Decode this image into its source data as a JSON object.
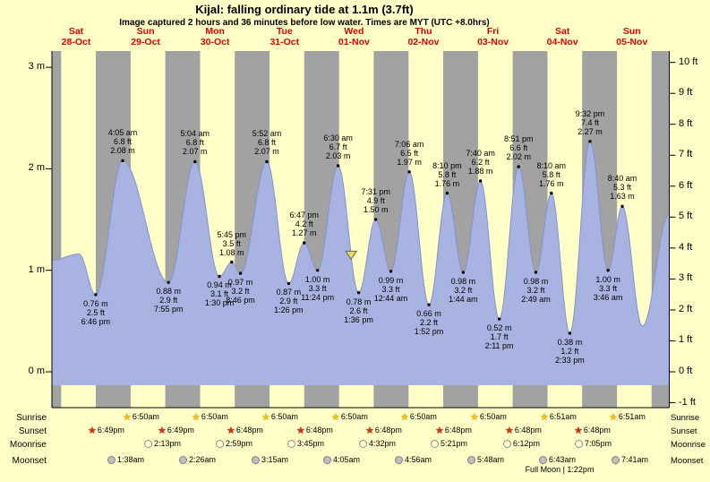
{
  "header": {
    "title": "Kijal: falling  ordinary tide at 1.1m (3.7ft)",
    "subtitle": "Image captured 2 hours and 36 minutes before low water. Times are MYT (UTC +8.0hrs)"
  },
  "colors": {
    "page_bg": "#ffffc8",
    "night_band": "#a2a2a2",
    "tide_fill": "#a9b3e1",
    "tide_edge": "#8093cf",
    "date_red": "#dd0000",
    "marker_fill": "#e6de52",
    "marker_edge": "#606060",
    "axis": "#000000"
  },
  "chart_data": {
    "type": "area",
    "title": "Kijal tide heights",
    "ylabel_left": "m",
    "ylabel_right": "ft",
    "ylim_m": [
      -0.3,
      3.2
    ],
    "days": [
      {
        "dow": "Sat",
        "date": "28-Oct"
      },
      {
        "dow": "Sun",
        "date": "29-Oct"
      },
      {
        "dow": "Mon",
        "date": "30-Oct"
      },
      {
        "dow": "Tue",
        "date": "31-Oct"
      },
      {
        "dow": "Wed",
        "date": "01-Nov"
      },
      {
        "dow": "Thu",
        "date": "02-Nov"
      },
      {
        "dow": "Fri",
        "date": "03-Nov"
      },
      {
        "dow": "Sat",
        "date": "04-Nov"
      },
      {
        "dow": "Sun",
        "date": "05-Nov"
      }
    ],
    "y_left_ticks": [
      {
        "v": 3,
        "label": "3 m"
      },
      {
        "v": 2,
        "label": "2 m"
      },
      {
        "v": 1,
        "label": "1 m"
      },
      {
        "v": 0,
        "label": "0 m"
      }
    ],
    "y_right_ticks": [
      {
        "v": 10,
        "label": "10 ft"
      },
      {
        "v": 9,
        "label": "9 ft"
      },
      {
        "v": 8,
        "label": "8 ft"
      },
      {
        "v": 7,
        "label": "7 ft"
      },
      {
        "v": 6,
        "label": "6 ft"
      },
      {
        "v": 5,
        "label": "5 ft"
      },
      {
        "v": 4,
        "label": "4 ft"
      },
      {
        "v": 3,
        "label": "3 ft"
      },
      {
        "v": 2,
        "label": "2 ft"
      },
      {
        "v": 1,
        "label": "1 ft"
      },
      {
        "v": 0,
        "label": "0 ft"
      },
      {
        "v": -1,
        "label": "-1 ft"
      }
    ],
    "tides": [
      {
        "kind": "low",
        "time": "6:46 pm",
        "ft": "2.5 ft",
        "m": "0.76 m",
        "t": 18.77,
        "h": 0.76
      },
      {
        "kind": "high",
        "time": "4:05 am",
        "ft": "6.8 ft",
        "m": "2.08 m",
        "t": 28.08,
        "h": 2.08
      },
      {
        "kind": "low",
        "time": "7:55 pm",
        "ft": "2.9 ft",
        "m": "0.88 m",
        "t": 43.92,
        "h": 0.88
      },
      {
        "kind": "high",
        "time": "5:04 am",
        "ft": "6.8 ft",
        "m": "2.07 m",
        "t": 53.07,
        "h": 2.07
      },
      {
        "kind": "low",
        "time": "1:30 pm",
        "ft": "3.1 ft",
        "m": "0.94 m",
        "t": 61.5,
        "h": 0.94
      },
      {
        "kind": "high",
        "time": "5:45 pm",
        "ft": "3.5 ft",
        "m": "1.08 m",
        "t": 65.75,
        "h": 1.08
      },
      {
        "kind": "low",
        "time": "8:46 pm",
        "ft": "3.2 ft",
        "m": "0.97 m",
        "t": 68.77,
        "h": 0.97
      },
      {
        "kind": "high",
        "time": "5:52 am",
        "ft": "6.8 ft",
        "m": "2.07 m",
        "t": 77.87,
        "h": 2.07
      },
      {
        "kind": "low",
        "time": "1:26 pm",
        "ft": "2.9 ft",
        "m": "0.87 m",
        "t": 85.43,
        "h": 0.87
      },
      {
        "kind": "high",
        "time": "6:47 pm",
        "ft": "4.2 ft",
        "m": "1.27 m",
        "t": 90.78,
        "h": 1.27
      },
      {
        "kind": "low",
        "time": "11:24 pm",
        "ft": "3.3 ft",
        "m": "1.00 m",
        "t": 95.4,
        "h": 1.0
      },
      {
        "kind": "high",
        "time": "6:30 am",
        "ft": "6.7 ft",
        "m": "2.03 m",
        "t": 102.5,
        "h": 2.03
      },
      {
        "kind": "low",
        "time": "1:36 pm",
        "ft": "2.6 ft",
        "m": "0.78 m",
        "t": 109.6,
        "h": 0.78
      },
      {
        "kind": "high",
        "time": "7:31 pm",
        "ft": "4.9 ft",
        "m": "1.50 m",
        "t": 115.52,
        "h": 1.5
      },
      {
        "kind": "low",
        "time": "12:44 am",
        "ft": "3.3 ft",
        "m": "0.99 m",
        "t": 120.73,
        "h": 0.99
      },
      {
        "kind": "high",
        "time": "7:06 am",
        "ft": "6.5 ft",
        "m": "1.97 m",
        "t": 127.1,
        "h": 1.97
      },
      {
        "kind": "low",
        "time": "1:52 pm",
        "ft": "2.2 ft",
        "m": "0.66 m",
        "t": 133.87,
        "h": 0.66
      },
      {
        "kind": "high",
        "time": "8:10 pm",
        "ft": "5.8 ft",
        "m": "1.76 m",
        "t": 140.17,
        "h": 1.76
      },
      {
        "kind": "low",
        "time": "1:44 am",
        "ft": "3.2 ft",
        "m": "0.98 m",
        "t": 145.73,
        "h": 0.98
      },
      {
        "kind": "high",
        "time": "7:40 am",
        "ft": "6.2 ft",
        "m": "1.88 m",
        "t": 151.67,
        "h": 1.88
      },
      {
        "kind": "low",
        "time": "2:11 pm",
        "ft": "1.7 ft",
        "m": "0.52 m",
        "t": 158.18,
        "h": 0.52
      },
      {
        "kind": "high",
        "time": "8:51 pm",
        "ft": "6.6 ft",
        "m": "2.02 m",
        "t": 164.85,
        "h": 2.02
      },
      {
        "kind": "low",
        "time": "2:49 am",
        "ft": "3.2 ft",
        "m": "0.98 m",
        "t": 170.82,
        "h": 0.98
      },
      {
        "kind": "high",
        "time": "8:10 am",
        "ft": "5.8 ft",
        "m": "1.76 m",
        "t": 176.17,
        "h": 1.76
      },
      {
        "kind": "low",
        "time": "2:33 pm",
        "ft": "1.2 ft",
        "m": "0.38 m",
        "t": 182.55,
        "h": 0.38
      },
      {
        "kind": "high",
        "time": "9:32 pm",
        "ft": "7.4 ft",
        "m": "2.27 m",
        "t": 189.53,
        "h": 2.27
      },
      {
        "kind": "low",
        "time": "3:46 am",
        "ft": "3.3 ft",
        "m": "1.00 m",
        "t": 195.77,
        "h": 1.0
      },
      {
        "kind": "high",
        "time": "8:40 am",
        "ft": "5.3 ft",
        "m": "1.63 m",
        "t": 200.67,
        "h": 1.63
      }
    ],
    "curve_aux": {
      "pre": [
        [
          3.65,
          1.1
        ],
        [
          13.0,
          1.16
        ]
      ],
      "post": [
        [
          207.6,
          0.45
        ],
        [
          216.9,
          1.55
        ]
      ]
    },
    "current_marker": {
      "t": 107,
      "h": 1.1
    }
  },
  "astro": {
    "labels": {
      "sunrise": "Sunrise",
      "sunset": "Sunset",
      "moonrise": "Moonrise",
      "moonset": "Moonset"
    },
    "sunrise": [
      {
        "day": 1,
        "time": "6:50am"
      },
      {
        "day": 2,
        "time": "6:50am"
      },
      {
        "day": 3,
        "time": "6:50am"
      },
      {
        "day": 4,
        "time": "6:50am"
      },
      {
        "day": 5,
        "time": "6:50am"
      },
      {
        "day": 6,
        "time": "6:50am"
      },
      {
        "day": 7,
        "time": "6:51am"
      },
      {
        "day": 8,
        "time": "6:51am"
      }
    ],
    "sunset": [
      {
        "day": 0,
        "time": "6:49pm"
      },
      {
        "day": 1,
        "time": "6:49pm"
      },
      {
        "day": 2,
        "time": "6:48pm"
      },
      {
        "day": 3,
        "time": "6:48pm"
      },
      {
        "day": 4,
        "time": "6:48pm"
      },
      {
        "day": 5,
        "time": "6:48pm"
      },
      {
        "day": 6,
        "time": "6:48pm"
      },
      {
        "day": 7,
        "time": "6:48pm"
      }
    ],
    "moonrise": [
      {
        "day": 1,
        "time": "2:13pm"
      },
      {
        "day": 2,
        "time": "2:59pm"
      },
      {
        "day": 3,
        "time": "3:45pm"
      },
      {
        "day": 4,
        "time": "4:32pm"
      },
      {
        "day": 5,
        "time": "5:21pm"
      },
      {
        "day": 6,
        "time": "6:12pm"
      },
      {
        "day": 7,
        "time": "7:05pm"
      }
    ],
    "moonset": [
      {
        "day": 1,
        "time": "1:38am"
      },
      {
        "day": 2,
        "time": "2:26am"
      },
      {
        "day": 3,
        "time": "3:15am"
      },
      {
        "day": 4,
        "time": "4:05am"
      },
      {
        "day": 5,
        "time": "4:56am"
      },
      {
        "day": 6,
        "time": "5:48am"
      },
      {
        "day": 7,
        "time": "6:43am"
      },
      {
        "day": 8,
        "time": "7:41am"
      }
    ],
    "full_moon": "Full Moon | 1:22pm"
  }
}
